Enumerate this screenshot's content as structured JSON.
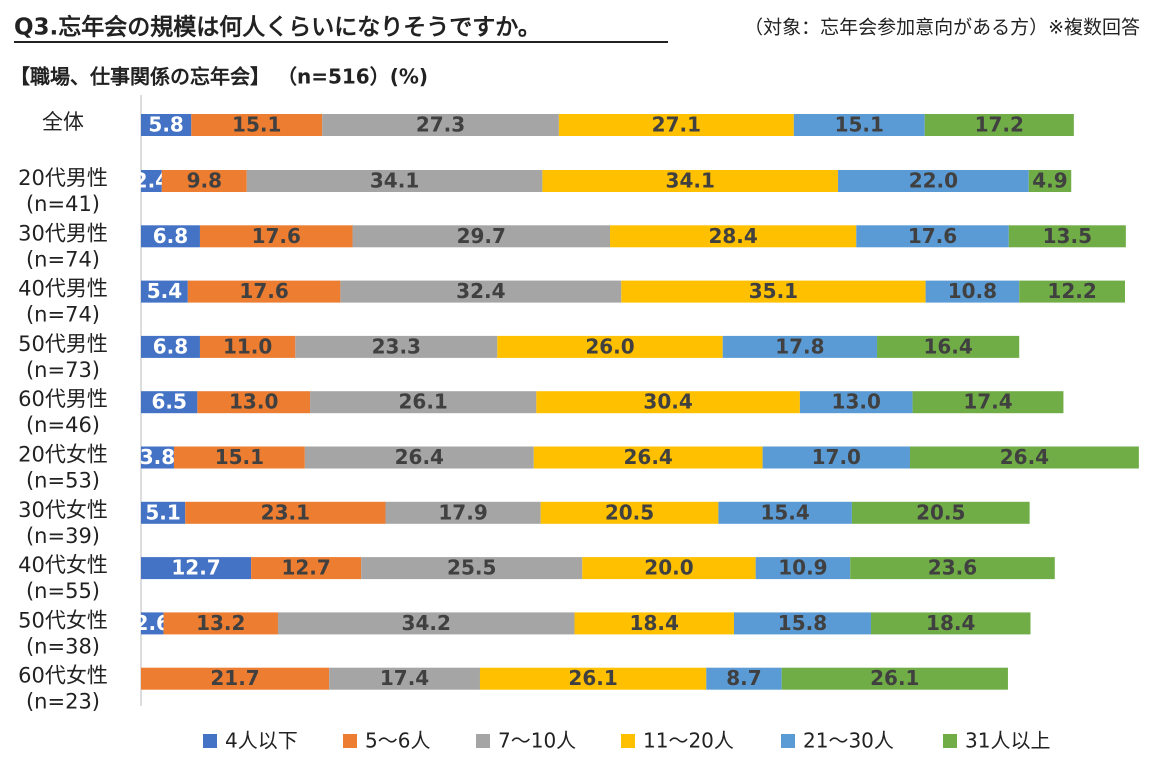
{
  "chart_data": {
    "type": "stacked_bar_horizontal",
    "title": "Q3.忘年会の規模は何人くらいになりそうですか。",
    "note": "（対象：忘年会参加意向がある方）※複数回答",
    "subtitle": "【職場、仕事関係の忘年会】 （n=516）(%)",
    "categories": [
      [
        "全体"
      ],
      [
        "20代男性",
        "(n=41)"
      ],
      [
        "30代男性",
        "(n=74)"
      ],
      [
        "40代男性",
        "(n=74)"
      ],
      [
        "50代男性",
        "(n=73)"
      ],
      [
        "60代男性",
        "(n=46)"
      ],
      [
        "20代女性",
        "(n=53)"
      ],
      [
        "30代女性",
        "(n=39)"
      ],
      [
        "40代女性",
        "(n=55)"
      ],
      [
        "50代女性",
        "(n=38)"
      ],
      [
        "60代女性",
        "(n=23)"
      ]
    ],
    "xlim": [
      0,
      118
    ],
    "series": [
      {
        "name": "4人以下",
        "color": "#4472c4",
        "label_color": "#ffffff",
        "values": [
          5.8,
          2.4,
          6.8,
          5.4,
          6.8,
          6.5,
          3.8,
          5.1,
          12.7,
          2.6,
          null
        ],
        "value_labels": [
          "5.8",
          "2.4",
          "6.8",
          "5.4",
          "6.8",
          "6.5",
          "3.8",
          "5.1",
          "12.7",
          "2.6",
          null
        ]
      },
      {
        "name": "5〜6人",
        "color": "#ed7d31",
        "label_color": "#404040",
        "values": [
          15.1,
          9.8,
          17.6,
          17.6,
          11.0,
          13.0,
          15.1,
          23.1,
          12.7,
          13.2,
          21.7
        ],
        "value_labels": [
          "15.1",
          "9.8",
          "17.6",
          "17.6",
          "11.0",
          "13.0",
          "15.1",
          "23.1",
          "12.7",
          "13.2",
          "21.7"
        ]
      },
      {
        "name": "7〜10人",
        "color": "#a5a5a5",
        "label_color": "#404040",
        "values": [
          27.3,
          34.1,
          29.7,
          32.4,
          23.3,
          26.1,
          26.4,
          17.9,
          25.5,
          34.2,
          17.4
        ],
        "value_labels": [
          "27.3",
          "34.1",
          "29.7",
          "32.4",
          "23.3",
          "26.1",
          "26.4",
          "17.9",
          "25.5",
          "34.2",
          "17.4"
        ]
      },
      {
        "name": "11〜20人",
        "color": "#ffc000",
        "label_color": "#404040",
        "values": [
          27.1,
          34.1,
          28.4,
          35.1,
          26.0,
          30.4,
          26.4,
          20.5,
          20.0,
          18.4,
          26.1
        ],
        "value_labels": [
          "27.1",
          "34.1",
          "28.4",
          "35.1",
          "26.0",
          "30.4",
          "26.4",
          "20.5",
          "20.0",
          "18.4",
          "26.1"
        ]
      },
      {
        "name": "21〜30人",
        "color": "#5b9bd5",
        "label_color": "#404040",
        "values": [
          15.1,
          22.0,
          17.6,
          10.8,
          17.8,
          13.0,
          17.0,
          15.4,
          10.9,
          15.8,
          8.7
        ],
        "value_labels": [
          "15.1",
          "22.0",
          "17.6",
          "10.8",
          "17.8",
          "13.0",
          "17.0",
          "15.4",
          "10.9",
          "15.8",
          "8.7"
        ]
      },
      {
        "name": "31人以上",
        "color": "#70ad47",
        "label_color": "#404040",
        "values": [
          17.2,
          4.9,
          13.5,
          12.2,
          16.4,
          17.4,
          26.4,
          20.5,
          23.6,
          18.4,
          26.1
        ],
        "value_labels": [
          "17.2",
          "4.9",
          "13.5",
          "12.2",
          "16.4",
          "17.4",
          "26.4",
          "20.5",
          "23.6",
          "18.4",
          "26.1"
        ]
      }
    ]
  }
}
